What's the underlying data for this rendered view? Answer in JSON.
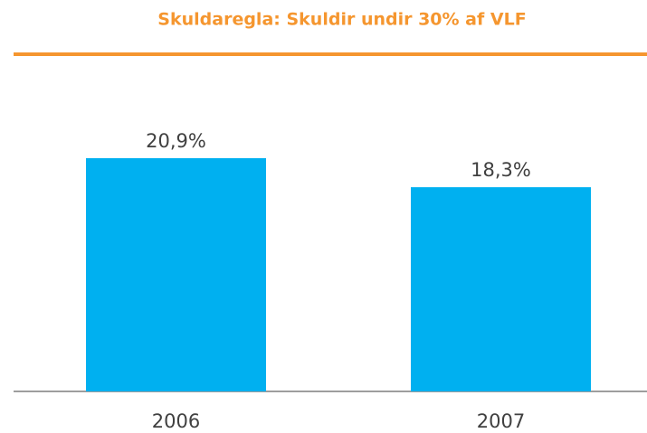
{
  "chart_data": {
    "type": "bar",
    "title": "Skuldaregla: Skuldir undir 30% af VLF",
    "categories": [
      "2006",
      "2007"
    ],
    "values": [
      20.9,
      18.3
    ],
    "value_labels": [
      "20,9%",
      "18,3%"
    ],
    "color": "#00b0f0"
  }
}
